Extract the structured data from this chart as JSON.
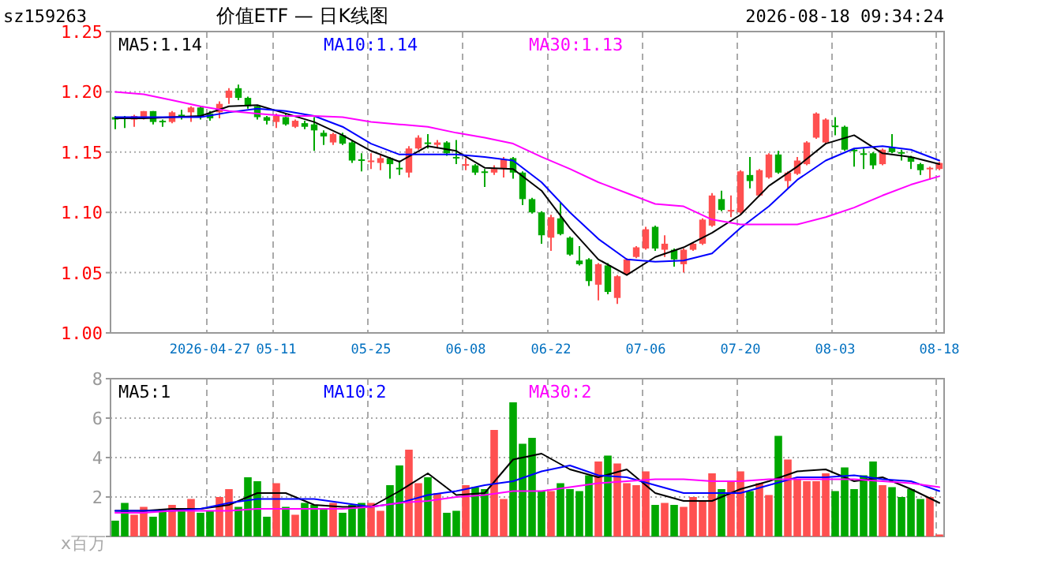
{
  "chart_data": [
    {
      "type": "candlestick",
      "title": "价值ETF — 日K线图",
      "annotations": [
        "sz159263",
        "2026-08-18 09:34:24"
      ],
      "categories": [
        null,
        null,
        null,
        null,
        null,
        null,
        null,
        null,
        null,
        null,
        "2026-04-27",
        null,
        null,
        null,
        null,
        null,
        null,
        "05-11",
        null,
        null,
        null,
        null,
        null,
        null,
        null,
        null,
        null,
        "05-25",
        null,
        null,
        null,
        null,
        null,
        null,
        null,
        null,
        null,
        "06-08",
        null,
        null,
        null,
        null,
        null,
        null,
        null,
        null,
        "06-22",
        null,
        null,
        null,
        null,
        null,
        null,
        null,
        null,
        null,
        "07-06",
        null,
        null,
        null,
        null,
        null,
        null,
        null,
        null,
        null,
        "07-20",
        null,
        null,
        null,
        null,
        null,
        null,
        null,
        null,
        null,
        "08-03",
        null,
        null,
        null,
        null,
        null,
        null,
        null,
        null,
        null,
        null,
        "08-18"
      ],
      "ohlc": [
        [
          1.179,
          1.18,
          1.169,
          1.177
        ],
        [
          1.179,
          1.18,
          1.17,
          1.178
        ],
        [
          1.177,
          1.181,
          1.171,
          1.18
        ],
        [
          1.179,
          1.184,
          1.177,
          1.184
        ],
        [
          1.184,
          1.184,
          1.173,
          1.175
        ],
        [
          1.176,
          1.177,
          1.171,
          1.175
        ],
        [
          1.175,
          1.184,
          1.174,
          1.183
        ],
        [
          1.181,
          1.185,
          1.177,
          1.179
        ],
        [
          1.183,
          1.188,
          1.175,
          1.187
        ],
        [
          1.187,
          1.188,
          1.177,
          1.179
        ],
        [
          1.182,
          1.184,
          1.176,
          1.178
        ],
        [
          1.183,
          1.192,
          1.178,
          1.19
        ],
        [
          1.195,
          1.203,
          1.19,
          1.201
        ],
        [
          1.203,
          1.206,
          1.193,
          1.195
        ],
        [
          1.195,
          1.196,
          1.186,
          1.188
        ],
        [
          1.188,
          1.189,
          1.177,
          1.179
        ],
        [
          1.179,
          1.18,
          1.173,
          1.176
        ],
        [
          1.175,
          1.182,
          1.17,
          1.18
        ],
        [
          1.179,
          1.182,
          1.172,
          1.173
        ],
        [
          1.171,
          1.177,
          1.17,
          1.176
        ],
        [
          1.174,
          1.176,
          1.169,
          1.171
        ],
        [
          1.173,
          1.179,
          1.151,
          1.168
        ],
        [
          1.166,
          1.168,
          1.156,
          1.163
        ],
        [
          1.158,
          1.166,
          1.156,
          1.165
        ],
        [
          1.164,
          1.166,
          1.156,
          1.157
        ],
        [
          1.158,
          1.159,
          1.141,
          1.143
        ],
        [
          1.144,
          1.149,
          1.134,
          1.143
        ],
        [
          1.142,
          1.149,
          1.136,
          1.143
        ],
        [
          1.141,
          1.148,
          1.135,
          1.145
        ],
        [
          1.145,
          1.146,
          1.128,
          1.14
        ],
        [
          1.137,
          1.143,
          1.131,
          1.136
        ],
        [
          1.133,
          1.155,
          1.129,
          1.153
        ],
        [
          1.153,
          1.164,
          1.152,
          1.162
        ],
        [
          1.158,
          1.165,
          1.153,
          1.157
        ],
        [
          1.156,
          1.16,
          1.153,
          1.158
        ],
        [
          1.158,
          1.159,
          1.147,
          1.149
        ],
        [
          1.146,
          1.16,
          1.14,
          1.145
        ],
        [
          1.139,
          1.145,
          1.135,
          1.14
        ],
        [
          1.139,
          1.14,
          1.131,
          1.133
        ],
        [
          1.134,
          1.136,
          1.121,
          1.133
        ],
        [
          1.133,
          1.139,
          1.131,
          1.136
        ],
        [
          1.136,
          1.146,
          1.129,
          1.144
        ],
        [
          1.145,
          1.146,
          1.128,
          1.133
        ],
        [
          1.133,
          1.134,
          1.106,
          1.111
        ],
        [
          1.111,
          1.112,
          1.099,
          1.1
        ],
        [
          1.1,
          1.101,
          1.074,
          1.081
        ],
        [
          1.079,
          1.098,
          1.068,
          1.096
        ],
        [
          1.095,
          1.108,
          1.081,
          1.082
        ],
        [
          1.079,
          1.08,
          1.064,
          1.065
        ],
        [
          1.06,
          1.072,
          1.056,
          1.057
        ],
        [
          1.061,
          1.062,
          1.039,
          1.043
        ],
        [
          1.04,
          1.058,
          1.027,
          1.057
        ],
        [
          1.056,
          1.058,
          1.032,
          1.034
        ],
        [
          1.029,
          1.048,
          1.024,
          1.047
        ],
        [
          1.049,
          1.062,
          1.048,
          1.061
        ],
        [
          1.063,
          1.072,
          1.062,
          1.071
        ],
        [
          1.07,
          1.088,
          1.069,
          1.086
        ],
        [
          1.088,
          1.089,
          1.068,
          1.07
        ],
        [
          1.069,
          1.081,
          1.063,
          1.074
        ],
        [
          1.069,
          1.07,
          1.055,
          1.061
        ],
        [
          1.057,
          1.07,
          1.05,
          1.069
        ],
        [
          1.069,
          1.075,
          1.068,
          1.074
        ],
        [
          1.074,
          1.095,
          1.073,
          1.094
        ],
        [
          1.089,
          1.116,
          1.088,
          1.114
        ],
        [
          1.111,
          1.118,
          1.101,
          1.102
        ],
        [
          1.101,
          1.114,
          1.096,
          1.102
        ],
        [
          1.1,
          1.135,
          1.099,
          1.134
        ],
        [
          1.131,
          1.146,
          1.12,
          1.126
        ],
        [
          1.114,
          1.136,
          1.113,
          1.135
        ],
        [
          1.129,
          1.149,
          1.128,
          1.148
        ],
        [
          1.148,
          1.151,
          1.132,
          1.133
        ],
        [
          1.126,
          1.134,
          1.12,
          1.133
        ],
        [
          1.132,
          1.146,
          1.131,
          1.143
        ],
        [
          1.14,
          1.159,
          1.139,
          1.158
        ],
        [
          1.162,
          1.183,
          1.161,
          1.182
        ],
        [
          1.158,
          1.178,
          1.157,
          1.177
        ],
        [
          1.172,
          1.179,
          1.164,
          1.171
        ],
        [
          1.171,
          1.172,
          1.151,
          1.152
        ],
        [
          1.152,
          1.153,
          1.138,
          1.151
        ],
        [
          1.149,
          1.153,
          1.136,
          1.148
        ],
        [
          1.149,
          1.15,
          1.136,
          1.139
        ],
        [
          1.14,
          1.153,
          1.139,
          1.152
        ],
        [
          1.154,
          1.165,
          1.149,
          1.15
        ],
        [
          1.15,
          1.152,
          1.143,
          1.149
        ],
        [
          1.146,
          1.147,
          1.136,
          1.142
        ],
        [
          1.14,
          1.141,
          1.131,
          1.135
        ],
        [
          1.136,
          1.138,
          1.127,
          1.137
        ],
        [
          1.136,
          1.142,
          1.135,
          1.141
        ]
      ],
      "colors": [
        "#00a800",
        "#00a800",
        "#ff5050",
        "#ff5050",
        "#00a800",
        "#00a800",
        "#ff5050",
        "#00a800",
        "#ff5050",
        "#00a800",
        "#00a800",
        "#ff5050",
        "#ff5050",
        "#00a800",
        "#00a800",
        "#00a800",
        "#00a800",
        "#ff5050",
        "#00a800",
        "#ff5050",
        "#00a800",
        "#00a800",
        "#00a800",
        "#ff5050",
        "#00a800",
        "#00a800",
        "#00a800",
        "#ff5050",
        "#ff5050",
        "#00a800",
        "#00a800",
        "#ff5050",
        "#ff5050",
        "#00a800",
        "#ff5050",
        "#00a800",
        "#00a800",
        "#ff5050",
        "#00a800",
        "#00a800",
        "#ff5050",
        "#ff5050",
        "#00a800",
        "#00a800",
        "#00a800",
        "#00a800",
        "#ff5050",
        "#00a800",
        "#00a800",
        "#00a800",
        "#00a800",
        "#ff5050",
        "#00a800",
        "#ff5050",
        "#ff5050",
        "#ff5050",
        "#ff5050",
        "#00a800",
        "#ff5050",
        "#00a800",
        "#ff5050",
        "#ff5050",
        "#ff5050",
        "#ff5050",
        "#00a800",
        "#ff5050",
        "#ff5050",
        "#00a800",
        "#ff5050",
        "#ff5050",
        "#00a800",
        "#ff5050",
        "#ff5050",
        "#ff5050",
        "#ff5050",
        "#ff5050",
        "#00a800",
        "#00a800",
        "#00a800",
        "#00a800",
        "#00a800",
        "#ff5050",
        "#00a800",
        "#00a800",
        "#00a800",
        "#00a800",
        "#ff5050",
        "#ff5050"
      ],
      "series": [
        {
          "name": "MA5:1.14",
          "type": "line",
          "color": "#000000",
          "values": [
            1.178,
            null,
            null,
            1.178,
            null,
            null,
            1.179,
            null,
            null,
            1.18,
            null,
            null,
            1.188,
            null,
            null,
            1.189,
            null,
            null,
            1.182,
            null,
            null,
            1.175,
            null,
            null,
            1.164,
            null,
            null,
            1.151,
            null,
            null,
            1.142,
            null,
            null,
            1.155,
            null,
            null,
            1.151,
            null,
            null,
            1.137,
            null,
            null,
            1.136,
            null,
            null,
            1.118,
            null,
            null,
            1.087,
            null,
            null,
            1.061,
            null,
            null,
            1.048,
            null,
            null,
            1.063,
            null,
            null,
            1.071,
            null,
            null,
            1.083,
            null,
            null,
            1.098,
            null,
            null,
            1.122,
            null,
            null,
            1.138,
            null,
            null,
            1.157,
            null,
            null,
            1.164,
            null,
            null,
            1.149,
            null,
            null,
            1.146,
            null,
            null,
            1.14
          ]
        },
        {
          "name": "MA10:1.14",
          "type": "line",
          "color": "#0000ff",
          "values": [
            1.179,
            null,
            null,
            1.179,
            null,
            null,
            1.179,
            null,
            null,
            1.179,
            null,
            null,
            1.183,
            null,
            null,
            1.186,
            null,
            null,
            1.184,
            null,
            null,
            1.18,
            null,
            null,
            1.171,
            null,
            null,
            1.157,
            null,
            null,
            1.148,
            null,
            null,
            1.148,
            null,
            null,
            1.148,
            null,
            null,
            1.146,
            null,
            null,
            1.143,
            null,
            null,
            1.125,
            null,
            null,
            1.1,
            null,
            null,
            1.078,
            null,
            null,
            1.061,
            null,
            null,
            1.059,
            null,
            null,
            1.06,
            null,
            null,
            1.066,
            null,
            null,
            1.087,
            null,
            null,
            1.105,
            null,
            null,
            1.127,
            null,
            null,
            1.143,
            null,
            null,
            1.153,
            null,
            null,
            1.155,
            null,
            null,
            1.152,
            null,
            null,
            1.143
          ]
        },
        {
          "name": "MA30:1.13",
          "type": "line",
          "color": "#ff00ff",
          "values": [
            1.2,
            null,
            null,
            1.198,
            null,
            null,
            1.193,
            null,
            null,
            1.188,
            null,
            null,
            1.184,
            null,
            null,
            1.182,
            null,
            null,
            1.18,
            null,
            null,
            1.18,
            null,
            null,
            1.179,
            null,
            null,
            1.175,
            null,
            null,
            1.173,
            null,
            null,
            1.171,
            null,
            null,
            1.166,
            null,
            null,
            1.162,
            null,
            null,
            1.157,
            null,
            null,
            1.146,
            null,
            null,
            1.136,
            null,
            null,
            1.125,
            null,
            null,
            1.116,
            null,
            null,
            1.107,
            null,
            null,
            1.105,
            null,
            null,
            1.094,
            null,
            null,
            1.09,
            null,
            null,
            1.09,
            null,
            null,
            1.09,
            null,
            null,
            1.096,
            null,
            null,
            1.104,
            null,
            null,
            1.114,
            null,
            null,
            1.123,
            null,
            null,
            1.13
          ]
        }
      ],
      "ylim": [
        1.0,
        1.25
      ],
      "yticks": [
        {
          "value": 1.0,
          "label": "1.00"
        },
        1.05,
        {
          "value": 1.1,
          "label": "1.10"
        },
        1.15,
        {
          "value": 1.2,
          "label": "1.20"
        },
        1.25
      ],
      "grid": true,
      "legend": "top"
    },
    {
      "type": "bar",
      "ylabel": "x百万",
      "categories": [
        null,
        null,
        null,
        null,
        null,
        null,
        null,
        null,
        null,
        null,
        null,
        null,
        null,
        null,
        null,
        null,
        null,
        null,
        null,
        null,
        null,
        null,
        null,
        null,
        null,
        null,
        null,
        null,
        null,
        null,
        null,
        null,
        null,
        null,
        null,
        null,
        null,
        null,
        null,
        null,
        null,
        null,
        null,
        null,
        null,
        null,
        null,
        null,
        null,
        null,
        null,
        null,
        null,
        null,
        null,
        null,
        null,
        null,
        null,
        null,
        null,
        null,
        null,
        null,
        null,
        null,
        null,
        null,
        null,
        null,
        null,
        null,
        null,
        null,
        null,
        null,
        null,
        null,
        null,
        null,
        null,
        null,
        null,
        null,
        null,
        null,
        null,
        null
      ],
      "values": [
        0.8,
        1.7,
        1.1,
        1.5,
        1.0,
        1.4,
        1.6,
        1.4,
        1.9,
        1.2,
        1.3,
        2.0,
        2.4,
        1.5,
        3.0,
        2.8,
        1.0,
        2.7,
        1.5,
        1.1,
        1.7,
        1.6,
        1.4,
        1.7,
        1.2,
        1.6,
        1.7,
        1.7,
        1.3,
        2.6,
        3.6,
        4.4,
        2.7,
        3.0,
        2.2,
        1.2,
        1.3,
        2.6,
        2.5,
        2.4,
        5.4,
        1.9,
        6.8,
        4.7,
        5.0,
        2.3,
        2.3,
        2.7,
        2.4,
        2.3,
        3.1,
        3.8,
        4.1,
        3.7,
        2.7,
        2.6,
        3.3,
        1.6,
        1.7,
        1.6,
        1.5,
        2.0,
        1.8,
        3.2,
        2.4,
        2.8,
        3.3,
        2.3,
        2.7,
        2.1,
        5.1,
        3.9,
        2.9,
        2.8,
        2.8,
        3.2,
        2.3,
        3.5,
        2.4,
        3.1,
        3.8,
        2.6,
        2.5,
        2.0,
        2.4,
        1.9,
        2.0,
        0.1
      ],
      "colors": [
        "#00a800",
        "#00a800",
        "#ff5050",
        "#ff5050",
        "#00a800",
        "#00a800",
        "#ff5050",
        "#00a800",
        "#ff5050",
        "#00a800",
        "#00a800",
        "#ff5050",
        "#ff5050",
        "#00a800",
        "#00a800",
        "#00a800",
        "#00a800",
        "#ff5050",
        "#00a800",
        "#ff5050",
        "#00a800",
        "#00a800",
        "#00a800",
        "#ff5050",
        "#00a800",
        "#00a800",
        "#00a800",
        "#ff5050",
        "#ff5050",
        "#00a800",
        "#00a800",
        "#ff5050",
        "#ff5050",
        "#00a800",
        "#ff5050",
        "#00a800",
        "#00a800",
        "#ff5050",
        "#00a800",
        "#00a800",
        "#ff5050",
        "#ff5050",
        "#00a800",
        "#00a800",
        "#00a800",
        "#00a800",
        "#ff5050",
        "#00a800",
        "#00a800",
        "#00a800",
        "#00a800",
        "#ff5050",
        "#00a800",
        "#ff5050",
        "#ff5050",
        "#ff5050",
        "#ff5050",
        "#00a800",
        "#ff5050",
        "#00a800",
        "#ff5050",
        "#ff5050",
        "#ff5050",
        "#ff5050",
        "#00a800",
        "#ff5050",
        "#ff5050",
        "#00a800",
        "#ff5050",
        "#ff5050",
        "#00a800",
        "#ff5050",
        "#ff5050",
        "#ff5050",
        "#ff5050",
        "#ff5050",
        "#00a800",
        "#00a800",
        "#00a800",
        "#00a800",
        "#00a800",
        "#ff5050",
        "#00a800",
        "#00a800",
        "#00a800",
        "#00a800",
        "#ff5050",
        "#ff5050"
      ],
      "series": [
        {
          "name": "MA5:1",
          "type": "line",
          "color": "#000000",
          "values": [
            1.3,
            null,
            null,
            1.3,
            null,
            null,
            1.4,
            null,
            null,
            1.4,
            null,
            null,
            1.6,
            null,
            null,
            2.2,
            null,
            null,
            2.2,
            null,
            null,
            1.6,
            null,
            null,
            1.5,
            null,
            null,
            1.5,
            null,
            null,
            2.3,
            null,
            null,
            3.2,
            null,
            null,
            2.1,
            null,
            null,
            2.2,
            null,
            null,
            3.9,
            null,
            null,
            4.2,
            null,
            null,
            3.4,
            null,
            null,
            3.0,
            null,
            null,
            3.4,
            null,
            null,
            2.2,
            null,
            null,
            1.8,
            null,
            null,
            1.8,
            null,
            null,
            2.4,
            null,
            null,
            2.8,
            null,
            null,
            3.3,
            null,
            null,
            3.4,
            null,
            null,
            2.8,
            null,
            null,
            3.0,
            null,
            null,
            2.4,
            null,
            null,
            1.7
          ]
        },
        {
          "name": "MA10:2",
          "type": "line",
          "color": "#0000ff",
          "values": [
            1.3,
            null,
            null,
            1.3,
            null,
            null,
            1.3,
            null,
            null,
            1.4,
            null,
            null,
            1.7,
            null,
            null,
            1.9,
            null,
            null,
            1.9,
            null,
            null,
            1.9,
            null,
            null,
            1.7,
            null,
            null,
            1.5,
            null,
            null,
            1.7,
            null,
            null,
            2.1,
            null,
            null,
            2.3,
            null,
            null,
            2.6,
            null,
            null,
            2.8,
            null,
            null,
            3.3,
            null,
            null,
            3.6,
            null,
            null,
            3.1,
            null,
            null,
            3.0,
            null,
            null,
            2.6,
            null,
            null,
            2.2,
            null,
            null,
            2.2,
            null,
            null,
            2.2,
            null,
            null,
            2.6,
            null,
            null,
            3.0,
            null,
            null,
            3.0,
            null,
            null,
            3.1,
            null,
            null,
            2.9,
            null,
            null,
            2.8,
            null,
            null,
            2.3
          ]
        },
        {
          "name": "MA30:2",
          "type": "line",
          "color": "#ff00ff",
          "values": [
            1.2,
            null,
            null,
            1.2,
            null,
            null,
            1.3,
            null,
            null,
            1.3,
            null,
            null,
            1.3,
            null,
            null,
            1.4,
            null,
            null,
            1.4,
            null,
            null,
            1.4,
            null,
            null,
            1.4,
            null,
            null,
            1.5,
            null,
            null,
            1.7,
            null,
            null,
            1.8,
            null,
            null,
            2.0,
            null,
            null,
            2.1,
            null,
            null,
            2.3,
            null,
            null,
            2.3,
            null,
            null,
            2.5,
            null,
            null,
            2.7,
            null,
            null,
            2.8,
            null,
            null,
            2.9,
            null,
            null,
            2.9,
            null,
            null,
            2.8,
            null,
            null,
            2.8,
            null,
            null,
            2.9,
            null,
            null,
            2.9,
            null,
            null,
            2.9,
            null,
            null,
            2.9,
            null,
            null,
            2.8,
            null,
            null,
            2.7,
            null,
            null,
            2.5
          ]
        }
      ],
      "ylim": [
        0,
        8
      ],
      "yticks": [
        {
          "value": 0,
          "label": null
        },
        2,
        4,
        6,
        8
      ],
      "grid": true,
      "legend": "top"
    }
  ]
}
